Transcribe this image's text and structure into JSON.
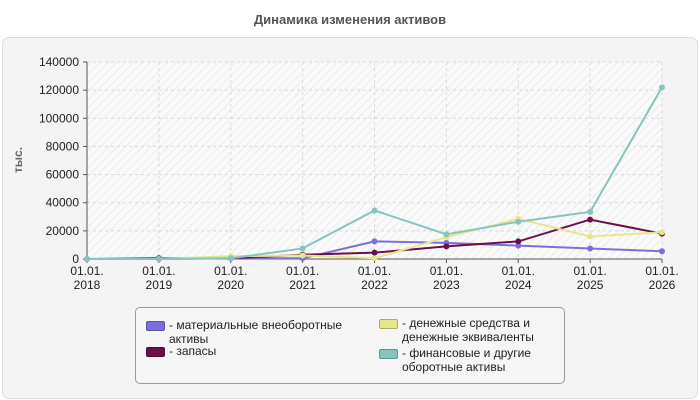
{
  "title": "Динамика изменения активов",
  "chart_data": {
    "type": "line",
    "ylabel": "тыс.",
    "ylim": [
      0,
      140000
    ],
    "yticks": [
      0,
      20000,
      40000,
      60000,
      80000,
      100000,
      120000,
      140000
    ],
    "ytick_labels": [
      "0",
      "20000",
      "40000",
      "60000",
      "80000",
      "100000",
      "120000",
      "140000"
    ],
    "categories": [
      "01.01.\n2018",
      "01.01.\n2019",
      "01.01.\n2020",
      "01.01.\n2021",
      "01.01.\n2022",
      "01.01.\n2023",
      "01.01.\n2024",
      "01.01.\n2025",
      "01.01.\n2026"
    ],
    "grid": true,
    "legend_position": "bottom",
    "series": [
      {
        "name": "- материальные внеоборотные\nактивы",
        "color": "#7b6fe0",
        "values": [
          0,
          0,
          500,
          500,
          12500,
          11500,
          9500,
          7500,
          5500
        ]
      },
      {
        "name": "- запасы",
        "color": "#6e1048",
        "values": [
          0,
          500,
          500,
          3000,
          4500,
          9000,
          12500,
          28000,
          18000
        ]
      },
      {
        "name": "- денежные средства и\nденежные эквиваленты",
        "color": "#e6e68c",
        "values": [
          0,
          0,
          2000,
          2500,
          500,
          15500,
          28500,
          16000,
          19000
        ]
      },
      {
        "name": "- финансовые и другие\nоборотные активы",
        "color": "#86c4c0",
        "values": [
          0,
          0,
          500,
          7500,
          34500,
          17500,
          26500,
          33500,
          122000
        ]
      }
    ]
  }
}
